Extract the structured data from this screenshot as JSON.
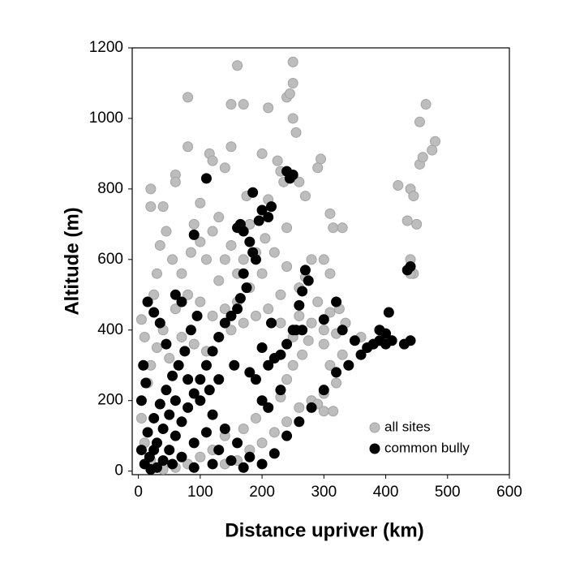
{
  "chart_data": {
    "type": "scatter",
    "xlabel": "Distance upriver (km)",
    "ylabel": "Altitude (m)",
    "xlim": [
      -10,
      600
    ],
    "ylim": [
      -10,
      1200
    ],
    "xticks": [
      0,
      100,
      200,
      300,
      400,
      500,
      600
    ],
    "yticks": [
      0,
      200,
      400,
      600,
      800,
      1000,
      1200
    ],
    "grid": false,
    "legend": "lower right",
    "series": [
      {
        "name": "all sites",
        "color": "#bdbdbd",
        "x": [
          160,
          250,
          250,
          80,
          150,
          170,
          210,
          240,
          245,
          250,
          255,
          465,
          455,
          480,
          475,
          80,
          150,
          200,
          115,
          120,
          140,
          225,
          230,
          295,
          290,
          235,
          260,
          420,
          440,
          20,
          60,
          60,
          40,
          20,
          100,
          130,
          175,
          210,
          180,
          205,
          240,
          270,
          310,
          315,
          330,
          300,
          310,
          280,
          270,
          260,
          240,
          220,
          230,
          290,
          310,
          325,
          335,
          320,
          300,
          275,
          265,
          250,
          240,
          230,
          210,
          190,
          170,
          140,
          120,
          100,
          80,
          60,
          40,
          20,
          10,
          5,
          15,
          10,
          5,
          25,
          30,
          35,
          45,
          55,
          70,
          85,
          90,
          100,
          110,
          120,
          130,
          140,
          150,
          160,
          170,
          190,
          200,
          180,
          160,
          140,
          120,
          100,
          80,
          60,
          40,
          30,
          20,
          50,
          70,
          90,
          110,
          130,
          150,
          170,
          190,
          210,
          230,
          250,
          260,
          280,
          300,
          310,
          330,
          340,
          320,
          300,
          280,
          260,
          240,
          220,
          200,
          180,
          160,
          140,
          300,
          315,
          290,
          360,
          380,
          440,
          445,
          440,
          435,
          450,
          455,
          460,
          445
        ],
        "y": [
          1150,
          1160,
          1100,
          1060,
          1040,
          1040,
          1030,
          1060,
          1070,
          1000,
          960,
          1040,
          990,
          935,
          910,
          920,
          920,
          900,
          900,
          880,
          860,
          880,
          850,
          885,
          860,
          820,
          820,
          810,
          800,
          800,
          840,
          820,
          750,
          750,
          760,
          720,
          780,
          770,
          700,
          660,
          690,
          780,
          730,
          690,
          690,
          600,
          560,
          600,
          550,
          520,
          580,
          620,
          500,
          480,
          450,
          460,
          420,
          390,
          400,
          370,
          330,
          300,
          260,
          210,
          180,
          150,
          120,
          100,
          60,
          40,
          20,
          10,
          5,
          30,
          80,
          150,
          250,
          380,
          430,
          500,
          560,
          640,
          680,
          600,
          560,
          620,
          700,
          650,
          600,
          680,
          540,
          600,
          640,
          560,
          600,
          620,
          560,
          520,
          480,
          460,
          440,
          480,
          500,
          460,
          400,
          350,
          300,
          320,
          380,
          360,
          340,
          380,
          400,
          420,
          440,
          460,
          420,
          380,
          440,
          420,
          360,
          300,
          330,
          300,
          250,
          220,
          200,
          180,
          140,
          110,
          80,
          60,
          30,
          20,
          170,
          170,
          190,
          380,
          360,
          600,
          560,
          560,
          710,
          700,
          870,
          890,
          780
        ]
      },
      {
        "name": "common bully",
        "color": "#000000",
        "x": [
          110,
          240,
          245,
          250,
          185,
          200,
          210,
          215,
          195,
          90,
          160,
          165,
          170,
          180,
          185,
          190,
          170,
          175,
          165,
          160,
          150,
          140,
          130,
          120,
          110,
          100,
          90,
          80,
          70,
          60,
          50,
          40,
          30,
          20,
          10,
          5,
          15,
          25,
          35,
          45,
          55,
          65,
          75,
          85,
          95,
          70,
          60,
          45,
          35,
          25,
          15,
          50,
          60,
          80,
          100,
          120,
          140,
          160,
          180,
          200,
          220,
          240,
          260,
          280,
          300,
          320,
          340,
          360,
          370,
          380,
          390,
          400,
          410,
          430,
          440,
          390,
          400,
          405,
          435,
          440,
          270,
          275,
          265,
          260,
          250,
          240,
          230,
          220,
          210,
          190,
          180,
          200,
          215,
          255,
          265,
          330,
          300,
          320,
          350,
          200,
          210,
          230,
          155,
          130,
          115,
          5,
          8,
          12,
          30,
          40,
          90,
          110,
          130,
          150,
          170,
          120,
          90,
          70,
          55,
          18,
          25
        ],
        "y": [
          830,
          850,
          830,
          840,
          790,
          740,
          720,
          750,
          710,
          670,
          690,
          700,
          680,
          650,
          620,
          600,
          560,
          520,
          490,
          460,
          440,
          420,
          380,
          340,
          300,
          260,
          220,
          180,
          140,
          100,
          60,
          30,
          10,
          5,
          20,
          60,
          110,
          150,
          190,
          230,
          270,
          300,
          340,
          400,
          440,
          480,
          500,
          360,
          420,
          450,
          480,
          160,
          200,
          260,
          200,
          160,
          120,
          80,
          40,
          20,
          50,
          100,
          140,
          180,
          230,
          280,
          300,
          330,
          350,
          360,
          370,
          360,
          370,
          360,
          370,
          400,
          390,
          450,
          570,
          580,
          570,
          540,
          510,
          470,
          400,
          360,
          330,
          320,
          300,
          260,
          280,
          350,
          420,
          400,
          400,
          400,
          430,
          480,
          370,
          200,
          180,
          230,
          300,
          260,
          230,
          200,
          300,
          250,
          80,
          120,
          80,
          110,
          60,
          30,
          10,
          20,
          10,
          40,
          20,
          40,
          60
        ]
      }
    ]
  }
}
